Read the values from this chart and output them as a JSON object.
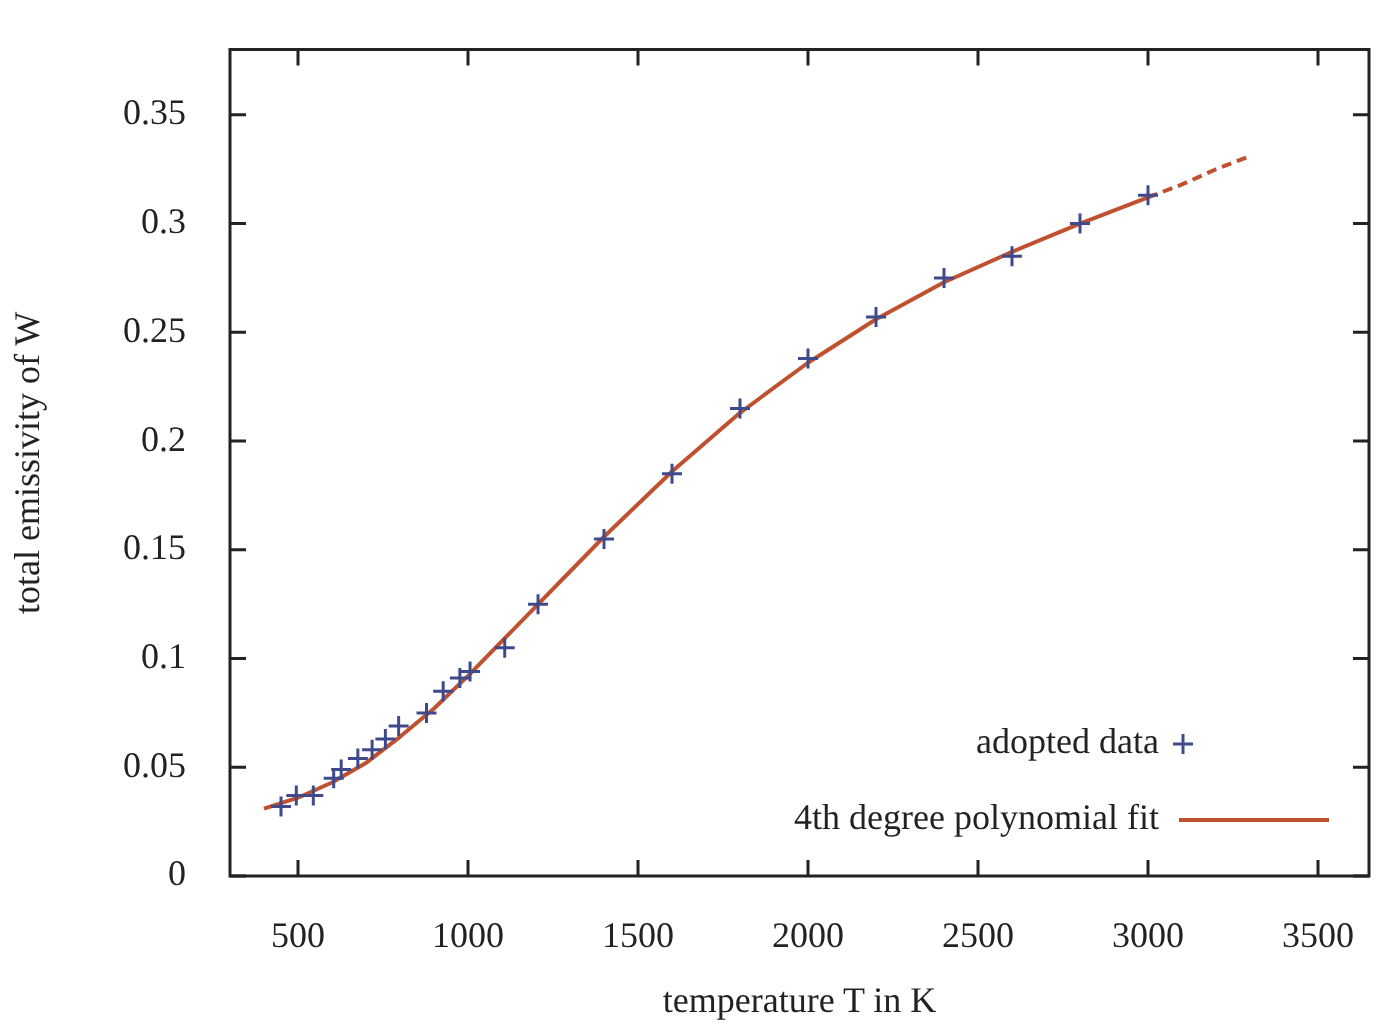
{
  "chart_data": {
    "type": "scatter",
    "xlabel": "temperature T in K",
    "ylabel": "total emissivity of W",
    "xlim": [
      300,
      3650
    ],
    "ylim": [
      0,
      0.38
    ],
    "xticks": [
      500,
      1000,
      1500,
      2000,
      2500,
      3000,
      3500
    ],
    "yticks": [
      {
        "value": 0,
        "label": "0"
      },
      0.05,
      {
        "value": 0.1,
        "label": "0.1"
      },
      0.15,
      {
        "value": 0.2,
        "label": "0.2"
      },
      0.25,
      {
        "value": 0.3,
        "label": "0.3"
      },
      0.35
    ],
    "grid": false,
    "legend": "bottom right",
    "series": [
      {
        "name": "adopted data",
        "marker": "cross",
        "color": "#3f4a8c",
        "x": [
          450,
          495,
          545,
          605,
          627,
          676,
          718,
          757,
          796,
          878,
          927,
          976,
          1006,
          1108,
          1206,
          1400,
          1600,
          1800,
          2000,
          2200,
          2400,
          2600,
          2800,
          3000
        ],
        "values": [
          0.032,
          0.037,
          0.037,
          0.045,
          0.049,
          0.054,
          0.058,
          0.063,
          0.069,
          0.075,
          0.085,
          0.091,
          0.094,
          0.105,
          0.125,
          0.155,
          0.185,
          0.215,
          0.238,
          0.257,
          0.275,
          0.285,
          0.3,
          0.313
        ]
      },
      {
        "name": "4th degree polynomial fit",
        "type": "line",
        "line_style": "solid",
        "color": "#c0512f",
        "x": [
          400,
          500,
          600,
          700,
          800,
          900,
          1000,
          1200,
          1400,
          1600,
          1800,
          2000,
          2200,
          2400,
          2600,
          2800,
          3000
        ],
        "values": [
          0.031,
          0.036,
          0.043,
          0.052,
          0.064,
          0.077,
          0.092,
          0.124,
          0.156,
          0.186,
          0.213,
          0.236,
          0.256,
          0.273,
          0.287,
          0.3,
          0.312
        ]
      },
      {
        "type": "line",
        "line_style": "dashed",
        "color": "#c0512f",
        "x": [
          3000,
          3100,
          3200,
          3300
        ],
        "values": [
          0.312,
          0.318,
          0.325,
          0.331
        ]
      }
    ]
  }
}
